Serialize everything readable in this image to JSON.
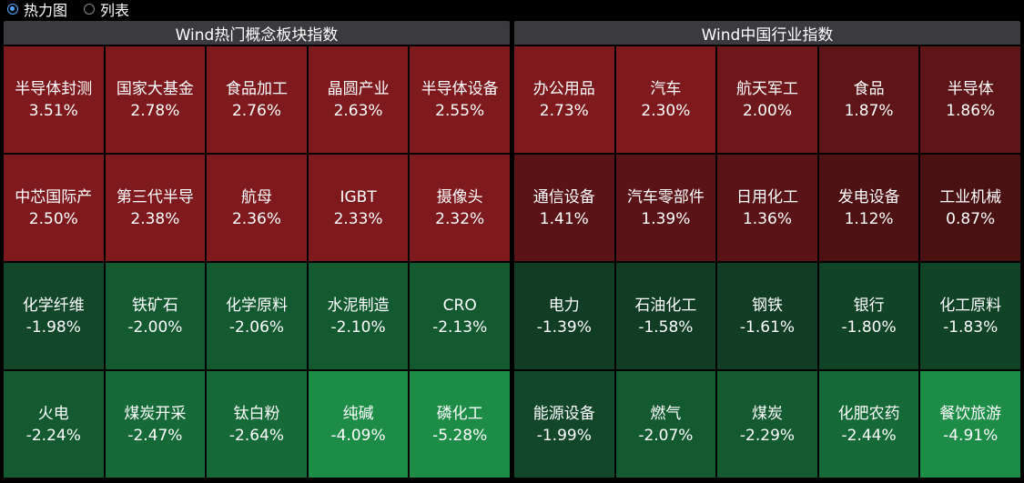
{
  "view_toggle": {
    "options": [
      {
        "label": "热力图",
        "selected": true
      },
      {
        "label": "列表",
        "selected": false
      }
    ]
  },
  "panels": {
    "left": {
      "title": "Wind热门概念板块指数",
      "cells": [
        {
          "name": "半导体封测",
          "pct": "3.51%",
          "color": "#7e1a1e"
        },
        {
          "name": "国家大基金",
          "pct": "2.78%",
          "color": "#7e1a1e"
        },
        {
          "name": "食品加工",
          "pct": "2.76%",
          "color": "#7e1a1e"
        },
        {
          "name": "晶圆产业",
          "pct": "2.63%",
          "color": "#7e1a1e"
        },
        {
          "name": "半导体设备",
          "pct": "2.55%",
          "color": "#7e1a1e"
        },
        {
          "name": "中芯国际产",
          "pct": "2.50%",
          "color": "#7e1a1e"
        },
        {
          "name": "第三代半导",
          "pct": "2.38%",
          "color": "#7e1a1e"
        },
        {
          "name": "航母",
          "pct": "2.36%",
          "color": "#7e1a1e"
        },
        {
          "name": "IGBT",
          "pct": "2.33%",
          "color": "#7e1a1e"
        },
        {
          "name": "摄像头",
          "pct": "2.32%",
          "color": "#7e1a1e"
        },
        {
          "name": "化学纤维",
          "pct": "-1.98%",
          "color": "#12472a"
        },
        {
          "name": "铁矿石",
          "pct": "-2.00%",
          "color": "#135a31"
        },
        {
          "name": "化学原料",
          "pct": "-2.06%",
          "color": "#135a31"
        },
        {
          "name": "水泥制造",
          "pct": "-2.10%",
          "color": "#135a31"
        },
        {
          "name": "CRO",
          "pct": "-2.13%",
          "color": "#135a31"
        },
        {
          "name": "火电",
          "pct": "-2.24%",
          "color": "#135a31"
        },
        {
          "name": "煤炭开采",
          "pct": "-2.47%",
          "color": "#156a37"
        },
        {
          "name": "钛白粉",
          "pct": "-2.64%",
          "color": "#156a37"
        },
        {
          "name": "纯碱",
          "pct": "-4.09%",
          "color": "#1c8c47"
        },
        {
          "name": "磷化工",
          "pct": "-5.28%",
          "color": "#1c8c47"
        }
      ]
    },
    "right": {
      "title": "Wind中国行业指数",
      "cells": [
        {
          "name": "办公用品",
          "pct": "2.73%",
          "color": "#7e1a1e"
        },
        {
          "name": "汽车",
          "pct": "2.30%",
          "color": "#7e1a1e"
        },
        {
          "name": "航天军工",
          "pct": "2.00%",
          "color": "#6e181b"
        },
        {
          "name": "食品",
          "pct": "1.87%",
          "color": "#5e1518"
        },
        {
          "name": "半导体",
          "pct": "1.86%",
          "color": "#5e1518"
        },
        {
          "name": "通信设备",
          "pct": "1.41%",
          "color": "#5a1417"
        },
        {
          "name": "汽车零部件",
          "pct": "1.39%",
          "color": "#5a1417"
        },
        {
          "name": "日用化工",
          "pct": "1.36%",
          "color": "#5a1417"
        },
        {
          "name": "发电设备",
          "pct": "1.12%",
          "color": "#4f1214"
        },
        {
          "name": "工业机械",
          "pct": "0.87%",
          "color": "#4a1113"
        },
        {
          "name": "电力",
          "pct": "-1.39%",
          "color": "#103d24"
        },
        {
          "name": "石油化工",
          "pct": "-1.58%",
          "color": "#103d24"
        },
        {
          "name": "钢铁",
          "pct": "-1.61%",
          "color": "#103d24"
        },
        {
          "name": "银行",
          "pct": "-1.80%",
          "color": "#114327"
        },
        {
          "name": "化工原料",
          "pct": "-1.83%",
          "color": "#114327"
        },
        {
          "name": "能源设备",
          "pct": "-1.99%",
          "color": "#12472a"
        },
        {
          "name": "燃气",
          "pct": "-2.07%",
          "color": "#135a31"
        },
        {
          "name": "煤炭",
          "pct": "-2.29%",
          "color": "#135a31"
        },
        {
          "name": "化肥农药",
          "pct": "-2.44%",
          "color": "#156a37"
        },
        {
          "name": "餐饮旅游",
          "pct": "-4.91%",
          "color": "#1c8c47"
        }
      ]
    }
  }
}
